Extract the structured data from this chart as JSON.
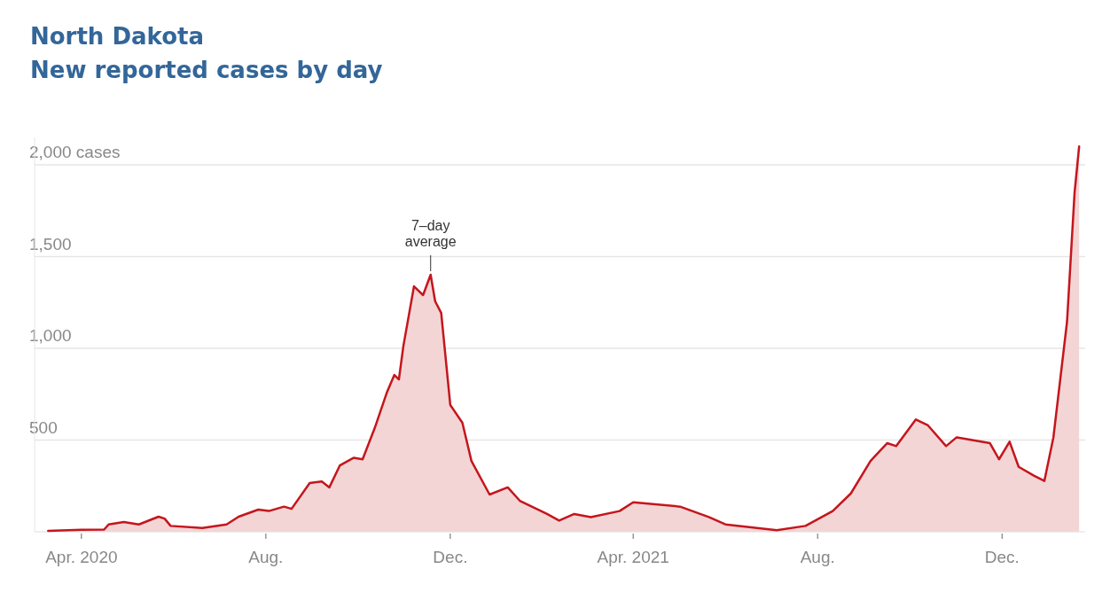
{
  "chart_data": {
    "type": "area",
    "title": "North Dakota",
    "subtitle": "New reported cases by day",
    "x": [
      "2020-03-10",
      "2020-04-01",
      "2020-04-16",
      "2020-04-19",
      "2020-04-29",
      "2020-05-09",
      "2020-05-22",
      "2020-05-26",
      "2020-05-30",
      "2020-06-20",
      "2020-07-06",
      "2020-07-14",
      "2020-07-27",
      "2020-08-03",
      "2020-08-13",
      "2020-08-18",
      "2020-08-30",
      "2020-09-07",
      "2020-09-12",
      "2020-09-19",
      "2020-09-28",
      "2020-10-04",
      "2020-10-12",
      "2020-10-20",
      "2020-10-25",
      "2020-10-28",
      "2020-10-31",
      "2020-11-07",
      "2020-11-13",
      "2020-11-18",
      "2020-11-21",
      "2020-11-25",
      "2020-12-01",
      "2020-12-09",
      "2020-12-15",
      "2020-12-27",
      "2021-01-08",
      "2021-01-16",
      "2021-02-03",
      "2021-02-11",
      "2021-02-21",
      "2021-03-04",
      "2021-03-23",
      "2021-04-01",
      "2021-05-02",
      "2021-05-21",
      "2021-06-01",
      "2021-07-05",
      "2021-07-24",
      "2021-08-11",
      "2021-08-23",
      "2021-09-05",
      "2021-09-16",
      "2021-09-22",
      "2021-10-05",
      "2021-10-13",
      "2021-10-25",
      "2021-11-01",
      "2021-11-23",
      "2021-11-29",
      "2021-12-06",
      "2021-12-12",
      "2021-12-22",
      "2021-12-29",
      "2022-01-04",
      "2022-01-13",
      "2022-01-18",
      "2022-01-21"
    ],
    "series": [
      {
        "color": "#c4161c",
        "values": [
          5,
          11,
          12,
          40,
          53,
          40,
          82,
          72,
          32,
          20,
          40,
          82,
          121,
          113,
          137,
          125,
          266,
          274,
          242,
          362,
          403,
          395,
          565,
          758,
          855,
          830,
          1014,
          1338,
          1290,
          1401,
          1256,
          1193,
          691,
          594,
          386,
          203,
          242,
          169,
          97,
          61,
          97,
          80,
          113,
          161,
          137,
          80,
          40,
          8,
          32,
          113,
          209,
          386,
          483,
          467,
          612,
          580,
          467,
          515,
          483,
          395,
          491,
          354,
          306,
          277,
          515,
          1145,
          1850,
          2100
        ]
      }
    ],
    "xlim": [
      "2020-03-01",
      "2022-01-25"
    ],
    "xticks": [
      {
        "value": "2020-04-01",
        "label": "Apr. 2020"
      },
      {
        "value": "2020-08-01",
        "label": "Aug."
      },
      {
        "value": "2020-12-01",
        "label": "Dec."
      },
      {
        "value": "2021-04-01",
        "label": "Apr. 2021"
      },
      {
        "value": "2021-08-01",
        "label": "Aug."
      },
      {
        "value": "2021-12-01",
        "label": "Dec."
      }
    ],
    "ylim": [
      0,
      2150
    ],
    "yticks": [
      {
        "value": 500,
        "label": "500"
      },
      {
        "value": 1000,
        "label": "1,000"
      },
      {
        "value": 1500,
        "label": "1,500"
      },
      {
        "value": 2000,
        "label": "2,000 cases"
      }
    ],
    "grid": "y",
    "annotations": [
      {
        "text": "7–day average",
        "x": "2020-11-18",
        "y": 1401
      }
    ]
  }
}
